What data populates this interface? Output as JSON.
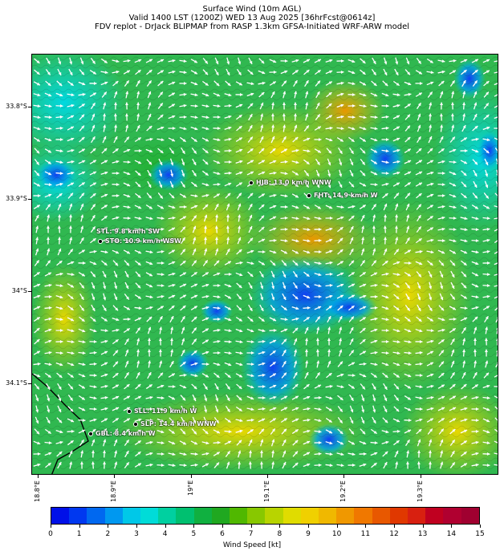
{
  "header": {
    "line1": "Surface Wind (10m AGL)",
    "line2": "Valid 1400 LST (1200Z) WED 13 Aug 2025 [36hrFcst@0614z]",
    "line3": "FDV replot - DrJack BLIPMAP from RASP 1.3km GFSA-Initiated WRF-ARW model"
  },
  "axes": {
    "lat_labels": [
      "33.8°S",
      "33.9°S",
      "34°S",
      "34.1°S"
    ],
    "lon_labels": [
      "18.8°E",
      "18.9°E",
      "19°E",
      "19.1°E",
      "19.2°E",
      "19.3°E"
    ]
  },
  "stations": [
    {
      "id": "HJB",
      "text": "HJB: 13.0 km/h WNW"
    },
    {
      "id": "FHT",
      "text": "FHT: 14.9 km/h W"
    },
    {
      "id": "STL",
      "text": "STL: 9.8 km/h SW"
    },
    {
      "id": "STO",
      "text": "STO: 10.9 km/h WSW"
    },
    {
      "id": "SLL",
      "text": "SLL: 11.9 km/h W"
    },
    {
      "id": "SLP",
      "text": "SLP: 14.4 km/h WNW"
    },
    {
      "id": "GBL",
      "text": "GBL: 8.4 km/h W"
    }
  ],
  "colorbar": {
    "label": "Wind Speed [kt]",
    "ticks": [
      "0",
      "1",
      "2",
      "3",
      "4",
      "5",
      "6",
      "7",
      "8",
      "9",
      "10",
      "11",
      "12",
      "13",
      "14",
      "15"
    ],
    "colors": [
      "#0010e8",
      "#0038f0",
      "#0068f0",
      "#0098f0",
      "#00c8e8",
      "#00dcd8",
      "#00d0a0",
      "#00c070",
      "#10b040",
      "#20a820",
      "#50b800",
      "#88c800",
      "#b8d400",
      "#e0dc00",
      "#f0d000",
      "#f0b800",
      "#f09800",
      "#f07800",
      "#e85800",
      "#e03800",
      "#d82010",
      "#c00020",
      "#b00030",
      "#a00030"
    ]
  }
}
